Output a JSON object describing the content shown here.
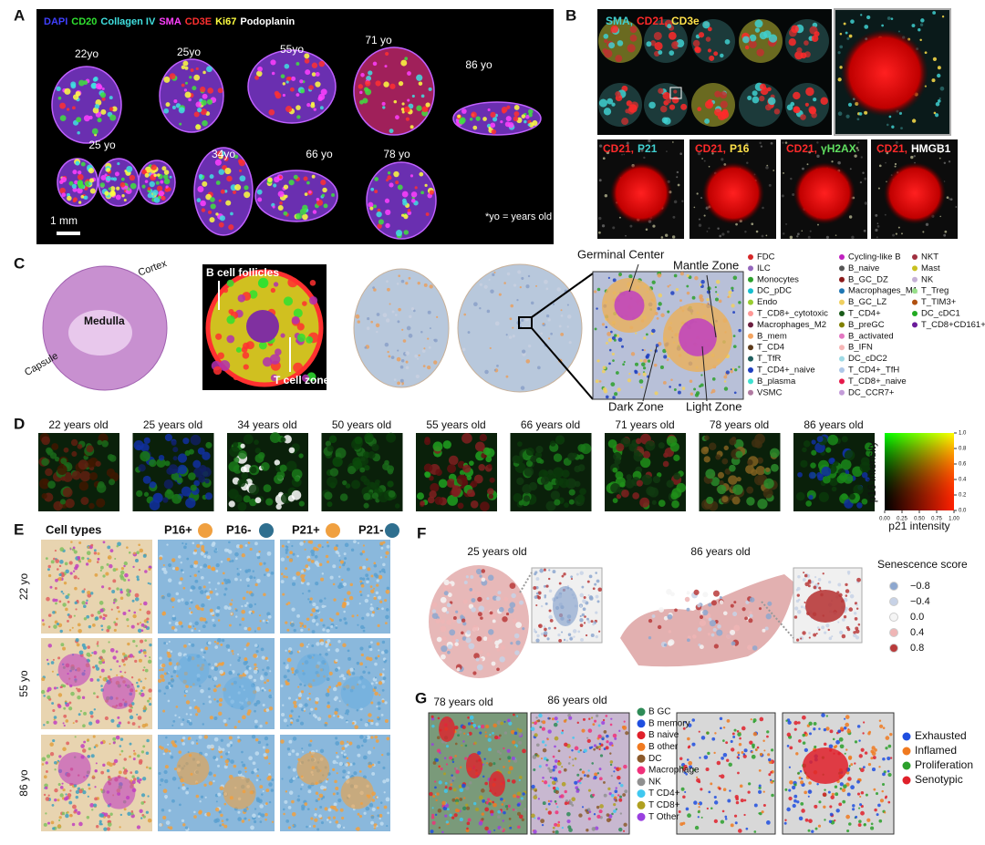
{
  "panel_A": {
    "label": "A",
    "stains": [
      {
        "text": "DAPI",
        "color": "#4040ff"
      },
      {
        "text": "CD20",
        "color": "#30e030"
      },
      {
        "text": "Collagen IV",
        "color": "#40e0e0"
      },
      {
        "text": "SMA",
        "color": "#ff40ff"
      },
      {
        "text": "CD3E",
        "color": "#ff3030"
      },
      {
        "text": "Ki67",
        "color": "#ffff40"
      },
      {
        "text": "Podoplanin",
        "color": "#ffffff"
      }
    ],
    "ages": [
      "22yo",
      "25yo",
      "55yo",
      "71 yo",
      "86 yo",
      "25 yo",
      "34yo",
      "66 yo",
      "78 yo"
    ],
    "scale_bar": "1 mm",
    "footnote": "*yo = years old"
  },
  "panel_B": {
    "label": "B",
    "main_stains": [
      {
        "text": "SMA,",
        "color": "#40d0d0"
      },
      {
        "text": "CD21,",
        "color": "#ff2a2a"
      },
      {
        "text": "CD3e",
        "color": "#ffe14a"
      }
    ],
    "insets": [
      [
        {
          "text": "CD21,",
          "color": "#ff2a2a"
        },
        {
          "text": "P21",
          "color": "#40d0d0"
        }
      ],
      [
        {
          "text": "CD21,",
          "color": "#ff2a2a"
        },
        {
          "text": "P16",
          "color": "#ffe14a"
        }
      ],
      [
        {
          "text": "CD21,",
          "color": "#ff2a2a"
        },
        {
          "text": "γH2AX",
          "color": "#60e060"
        }
      ],
      [
        {
          "text": "CD21,",
          "color": "#ff2a2a"
        },
        {
          "text": "HMGB1",
          "color": "#ffffff"
        }
      ]
    ]
  },
  "panel_C": {
    "label": "C",
    "he_labels": [
      "Cortex",
      "Medulla",
      "Capsule"
    ],
    "if_labels": [
      "B cell follicles",
      "T cell zone"
    ],
    "zone_labels": [
      "Germinal Center",
      "Mantle Zone",
      "Dark Zone",
      "Light Zone"
    ],
    "legend_columns": [
      [
        {
          "name": "FDC",
          "color": "#d62728"
        },
        {
          "name": "ILC",
          "color": "#9467bd"
        },
        {
          "name": "Monocytes",
          "color": "#2ca02c"
        },
        {
          "name": "DC_pDC",
          "color": "#17becf"
        },
        {
          "name": "Endo",
          "color": "#9acd32"
        },
        {
          "name": "T_CD8+_cytotoxic",
          "color": "#ff9896"
        },
        {
          "name": "Macrophages_M2",
          "color": "#6b1e3f"
        },
        {
          "name": "B_mem",
          "color": "#f4a460"
        },
        {
          "name": "T_CD4",
          "color": "#5c3a1a"
        },
        {
          "name": "T_TfR",
          "color": "#1f5f5f"
        },
        {
          "name": "T_CD4+_naive",
          "color": "#1f3fbf"
        },
        {
          "name": "B_plasma",
          "color": "#40e0d0"
        },
        {
          "name": "VSMC",
          "color": "#b07aa1"
        }
      ],
      [
        {
          "name": "Cycling-like B",
          "color": "#c020c0"
        },
        {
          "name": "B_naive",
          "color": "#555555"
        },
        {
          "name": "B_GC_DZ",
          "color": "#8b1a1a"
        },
        {
          "name": "Macrophages_M1",
          "color": "#1f77b4"
        },
        {
          "name": "B_GC_LZ",
          "color": "#f0d060"
        },
        {
          "name": "T_CD4+",
          "color": "#1a5c1a"
        },
        {
          "name": "B_preGC",
          "color": "#808000"
        },
        {
          "name": "B_activated",
          "color": "#e377c2"
        },
        {
          "name": "B_IFN",
          "color": "#f7b6b6"
        },
        {
          "name": "DC_cDC2",
          "color": "#9edae5"
        },
        {
          "name": "T_CD4+_TfH",
          "color": "#aec7e8"
        },
        {
          "name": "T_CD8+_naive",
          "color": "#e6194b"
        },
        {
          "name": "DC_CCR7+",
          "color": "#c49cd9"
        }
      ],
      [
        {
          "name": "NKT",
          "color": "#a03040"
        },
        {
          "name": "Mast",
          "color": "#c8c020"
        },
        {
          "name": "NK",
          "color": "#c5b0d5"
        },
        {
          "name": "T_Treg",
          "color": "#98df8a"
        },
        {
          "name": "T_TIM3+",
          "color": "#b05010"
        },
        {
          "name": "DC_cDC1",
          "color": "#22aa22"
        },
        {
          "name": "T_CD8+CD161+",
          "color": "#6a1b9a"
        }
      ]
    ]
  },
  "panel_D": {
    "label": "D",
    "ages": [
      "22 years old",
      "25 years old",
      "34 years old",
      "50 years old",
      "55 years old",
      "66 years old",
      "71 years old",
      "78 years old",
      "86 years old"
    ],
    "colorbar": {
      "xlabel": "p21 intensity",
      "ylabel": "p16 intensity",
      "xlim": [
        0,
        1
      ],
      "ylim": [
        0,
        1
      ],
      "xticks": [
        {
          "value": 0,
          "label": "0.00"
        },
        {
          "value": 0.25,
          "label": "0.25"
        },
        {
          "value": 0.5,
          "label": "0.50"
        },
        {
          "value": 0.75,
          "label": "0.75"
        },
        {
          "value": 1,
          "label": "1.00"
        }
      ],
      "yticks": [
        {
          "value": 0,
          "label": "0.0"
        },
        {
          "value": 0.2,
          "label": "0.2"
        },
        {
          "value": 0.4,
          "label": "0.4"
        },
        {
          "value": 0.6,
          "label": "0.6"
        },
        {
          "value": 0.8,
          "label": "0.8"
        },
        {
          "value": 1,
          "label": "1.0"
        }
      ]
    }
  },
  "panel_E": {
    "label": "E",
    "headers": [
      {
        "text": "Cell types"
      },
      {
        "text": "P16+",
        "color": "#f0a040"
      },
      {
        "text": "P16-",
        "color": "#2f6f8f"
      },
      {
        "text": "P21+",
        "color": "#f0a040"
      },
      {
        "text": "P21-",
        "color": "#2f6f8f"
      }
    ],
    "rows": [
      "22 yo",
      "55 yo",
      "86 yo"
    ]
  },
  "panel_F": {
    "label": "F",
    "titles": [
      "25 years old",
      "86 years old"
    ],
    "legend_title": "Senescence score",
    "legend": [
      {
        "label": "−0.8",
        "color": "#8da7cf"
      },
      {
        "label": "−0.4",
        "color": "#c7d2e6"
      },
      {
        "label": "0.0",
        "color": "#f5f5f5"
      },
      {
        "label": "0.4",
        "color": "#efb5b5"
      },
      {
        "label": "0.8",
        "color": "#b83a3a"
      }
    ]
  },
  "panel_G": {
    "label": "G",
    "titles": [
      "78 years old",
      "86 years old"
    ],
    "cell_legend": [
      {
        "name": "B GC",
        "color": "#2e8b57"
      },
      {
        "name": "B memory",
        "color": "#1f4fe0"
      },
      {
        "name": "B naive",
        "color": "#e0202a"
      },
      {
        "name": "B other",
        "color": "#f07a20"
      },
      {
        "name": "DC",
        "color": "#8b5a2b"
      },
      {
        "name": "Macrophage",
        "color": "#f0307a"
      },
      {
        "name": "NK",
        "color": "#909090"
      },
      {
        "name": "T CD4+",
        "color": "#40c8f0"
      },
      {
        "name": "T CD8+",
        "color": "#b0a020"
      },
      {
        "name": "T Other",
        "color": "#9a40e0"
      }
    ],
    "state_legend": [
      {
        "name": "Exhausted",
        "color": "#1f4fe0"
      },
      {
        "name": "Inflamed",
        "color": "#f07a20"
      },
      {
        "name": "Proliferation",
        "color": "#2ca02c"
      },
      {
        "name": "Senotypic",
        "color": "#e0202a"
      }
    ]
  }
}
